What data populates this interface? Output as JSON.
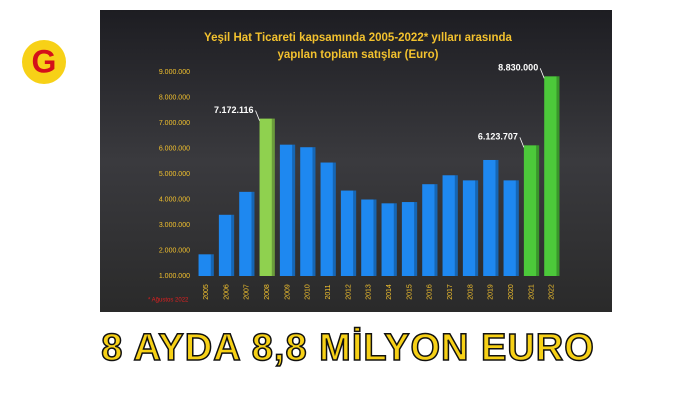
{
  "logo": {
    "text": "G"
  },
  "headline": "8 AYDA 8,8 MİLYON EURO",
  "chart_data": {
    "type": "bar",
    "title": [
      "Yeşil Hat Ticareti kapsamında 2005-2022* yılları arasında",
      "yapılan toplam satışlar (Euro)"
    ],
    "footnote": "* Ağustos 2022",
    "categories": [
      "2005",
      "2006",
      "2007",
      "2008",
      "2009",
      "2010",
      "2011",
      "2012",
      "2013",
      "2014",
      "2015",
      "2016",
      "2017",
      "2018",
      "2019",
      "2020",
      "2021",
      "2022"
    ],
    "values": [
      1850000,
      3400000,
      4300000,
      7172116,
      6150000,
      6050000,
      5450000,
      4350000,
      4000000,
      3850000,
      3900000,
      4600000,
      4950000,
      4750000,
      5550000,
      4750000,
      6123707,
      8830000
    ],
    "value_labels": [
      null,
      null,
      null,
      "7.172.116",
      null,
      null,
      null,
      null,
      null,
      null,
      null,
      null,
      null,
      null,
      null,
      null,
      "6.123.707",
      "8.830.000"
    ],
    "colors": [
      "#1e88f0",
      "#1e88f0",
      "#1e88f0",
      "#8fd14f",
      "#1e88f0",
      "#1e88f0",
      "#1e88f0",
      "#1e88f0",
      "#1e88f0",
      "#1e88f0",
      "#1e88f0",
      "#1e88f0",
      "#1e88f0",
      "#1e88f0",
      "#1e88f0",
      "#1e88f0",
      "#4cc93a",
      "#4cc93a"
    ],
    "ylim": [
      1000000,
      9000000
    ],
    "yticks": [
      {
        "value": 1000000,
        "label": "1.000.000"
      },
      {
        "value": 2000000,
        "label": "2.000.000"
      },
      {
        "value": 3000000,
        "label": "3.000.000"
      },
      {
        "value": 4000000,
        "label": "4.000.000"
      },
      {
        "value": 5000000,
        "label": "5.000.000"
      },
      {
        "value": 6000000,
        "label": "6.000.000"
      },
      {
        "value": 7000000,
        "label": "7.000.000"
      },
      {
        "value": 8000000,
        "label": "8.000.000"
      },
      {
        "value": 9000000,
        "label": "9.000.000"
      }
    ]
  }
}
